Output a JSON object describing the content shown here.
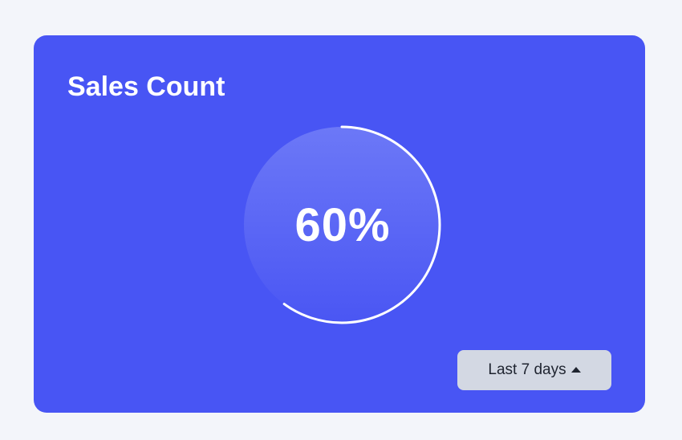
{
  "card": {
    "title": "Sales Count"
  },
  "gauge": {
    "progress": 0.6,
    "label": "60%"
  },
  "range_selector": {
    "label": "Last 7 days",
    "caret_icon": "caret-up-icon"
  },
  "colors": {
    "card_background": "#4855f4",
    "ring": "#ffffff",
    "button_background": "#d3d8e3"
  }
}
